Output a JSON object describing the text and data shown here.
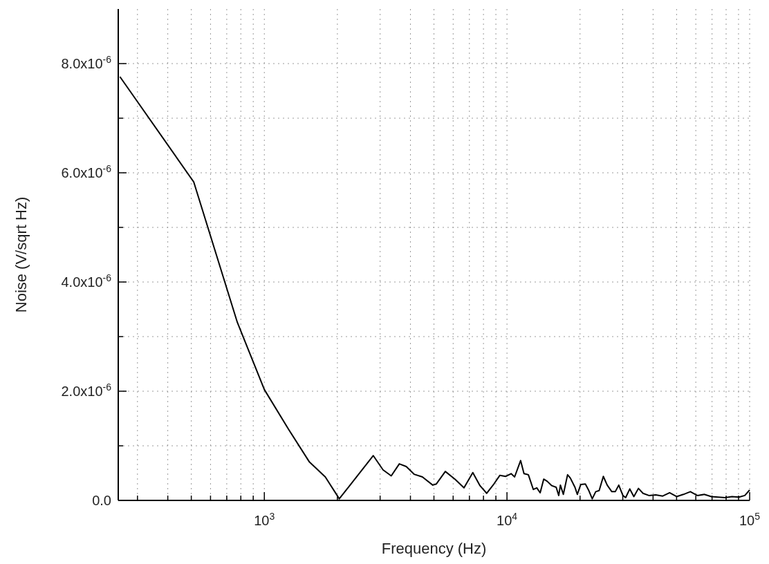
{
  "chart_data": {
    "type": "line",
    "xlabel": "Frequency (Hz)",
    "ylabel": "Noise (V/sqrt Hz)",
    "log": "x",
    "grid": true,
    "marker": "none",
    "line_style": "solid",
    "xlim": [
      250,
      100000
    ],
    "ylim": [
      0,
      9e-06
    ],
    "xticks": [
      {
        "value": 300,
        "label": null
      },
      {
        "value": 400,
        "label": null
      },
      {
        "value": 500,
        "label": null
      },
      {
        "value": 600,
        "label": null
      },
      {
        "value": 700,
        "label": null
      },
      {
        "value": 800,
        "label": null
      },
      {
        "value": 900,
        "label": null
      },
      {
        "value": 1000,
        "label": "10$^{3}$"
      },
      {
        "value": 2000,
        "label": null
      },
      {
        "value": 3000,
        "label": null
      },
      {
        "value": 4000,
        "label": null
      },
      {
        "value": 5000,
        "label": null
      },
      {
        "value": 6000,
        "label": null
      },
      {
        "value": 7000,
        "label": null
      },
      {
        "value": 8000,
        "label": null
      },
      {
        "value": 9000,
        "label": null
      },
      {
        "value": 10000,
        "label": "10$^{4}$"
      },
      {
        "value": 20000,
        "label": null
      },
      {
        "value": 30000,
        "label": null
      },
      {
        "value": 40000,
        "label": null
      },
      {
        "value": 50000,
        "label": null
      },
      {
        "value": 60000,
        "label": null
      },
      {
        "value": 70000,
        "label": null
      },
      {
        "value": 80000,
        "label": null
      },
      {
        "value": 90000,
        "label": null
      },
      {
        "value": 100000,
        "label": "10$^{5}$"
      }
    ],
    "yticks": [
      {
        "value": 0,
        "label": "0.0"
      },
      {
        "value": 1e-06,
        "label": null
      },
      {
        "value": 2e-06,
        "label": "2.0x10$^{-6}$"
      },
      {
        "value": 3e-06,
        "label": null
      },
      {
        "value": 4e-06,
        "label": "4.0x10$^{-6}$"
      },
      {
        "value": 5e-06,
        "label": null
      },
      {
        "value": 6e-06,
        "label": "6.0x10$^{-6}$"
      },
      {
        "value": 7e-06,
        "label": null
      },
      {
        "value": 8e-06,
        "label": "8.0x10$^{-6}$"
      }
    ],
    "series": [
      {
        "color": "#000000",
        "x": [
          254,
          512,
          774,
          1000,
          1259,
          1530,
          1783,
          2036,
          2812,
          3083,
          3334,
          3600,
          3845,
          4140,
          4480,
          4945,
          5110,
          5570,
          6100,
          6650,
          7230,
          7740,
          8250,
          8830,
          9350,
          9870,
          10400,
          10750,
          11380,
          11750,
          12250,
          12840,
          13270,
          13700,
          14170,
          14650,
          15300,
          15950,
          16340,
          16600,
          17070,
          17770,
          18240,
          19060,
          19490,
          20130,
          21040,
          21740,
          22460,
          23210,
          23980,
          24950,
          25880,
          27040,
          27940,
          28880,
          30040,
          30830,
          32070,
          33330,
          34810,
          36360,
          38440,
          41020,
          43840,
          46800,
          49990,
          53340,
          56970,
          60900,
          65000,
          69500,
          74200,
          79200,
          84600,
          90300,
          95500,
          100000
        ],
        "values": [
          7.76e-06,
          5.83e-06,
          3.26e-06,
          2.03e-06,
          1.3e-06,
          7.1e-07,
          4.3e-07,
          3e-08,
          8.2e-07,
          5.6e-07,
          4.5e-07,
          6.7e-07,
          6.2e-07,
          4.8e-07,
          4.3e-07,
          2.8e-07,
          3e-07,
          5.3e-07,
          3.9e-07,
          2.3e-07,
          5.1e-07,
          2.7e-07,
          1.3e-07,
          3e-07,
          4.6e-07,
          4.4e-07,
          4.9e-07,
          4.3e-07,
          7.3e-07,
          4.9e-07,
          4.7e-07,
          2e-07,
          2.3e-07,
          1.4e-07,
          3.9e-07,
          3.5e-07,
          2.7e-07,
          2.4e-07,
          9e-08,
          2.8e-07,
          1.1e-07,
          4.7e-07,
          4.1e-07,
          2.4e-07,
          1.1e-07,
          2.9e-07,
          3e-07,
          1.8e-07,
          3e-08,
          1.6e-07,
          1.8e-07,
          4.4e-07,
          2.8e-07,
          1.6e-07,
          1.6e-07,
          2.8e-07,
          9e-08,
          5e-08,
          2.1e-07,
          7e-08,
          2.2e-07,
          1.3e-07,
          9e-08,
          1e-07,
          8e-08,
          1.4e-07,
          7e-08,
          1.1e-07,
          1.6e-07,
          9e-08,
          1.1e-07,
          7e-08,
          6e-08,
          5e-08,
          7e-08,
          6e-08,
          9e-08,
          1.9e-07
        ]
      }
    ]
  }
}
